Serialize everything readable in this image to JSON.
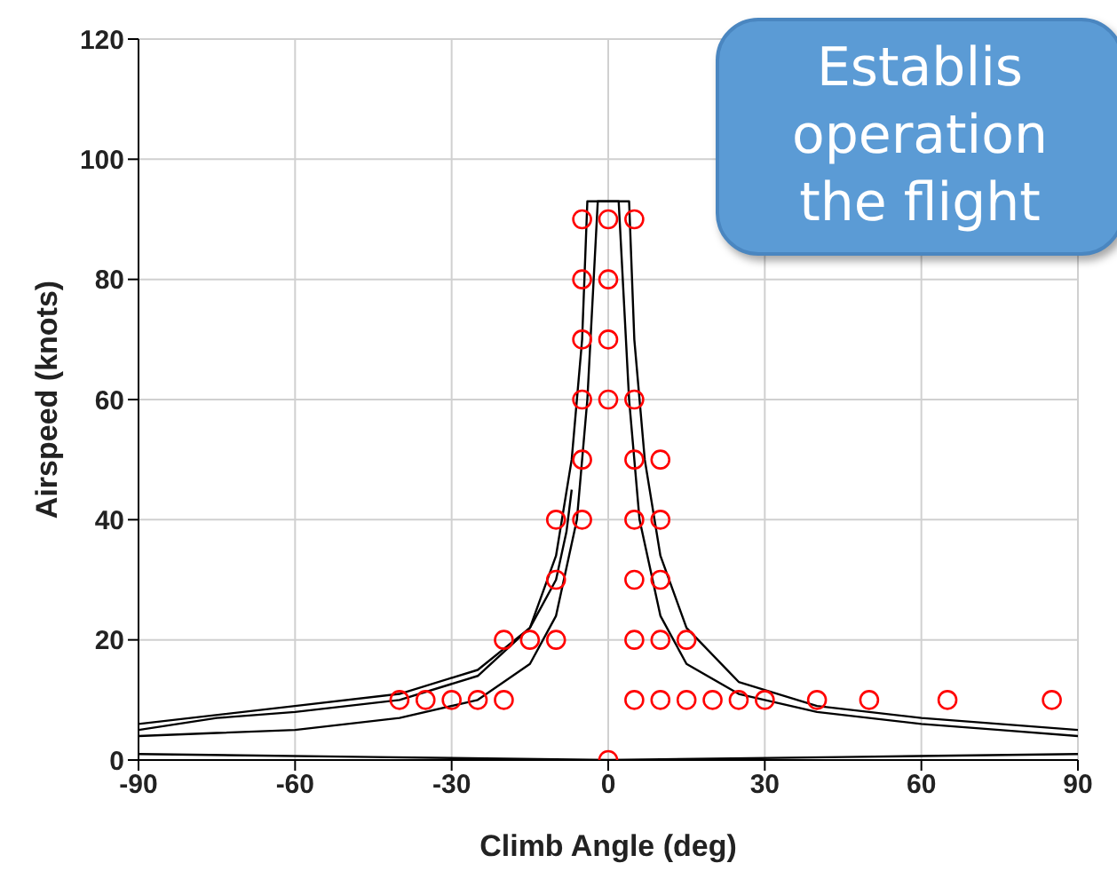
{
  "chart_data": {
    "type": "line",
    "xlabel": "Climb Angle (deg)",
    "ylabel": "Airspeed (knots)",
    "xlim": [
      -90,
      90
    ],
    "xticks": [
      -90,
      -60,
      -30,
      0,
      30,
      60,
      90
    ],
    "ylim": [
      0,
      120
    ],
    "yticks": [
      0,
      20,
      40,
      60,
      80,
      100,
      120
    ],
    "grid": true,
    "line_style": "solid",
    "series": [
      {
        "marker": "none",
        "color": "#000000",
        "x": [
          -90,
          -75,
          -60,
          -40,
          -25,
          -15,
          -10,
          -7,
          -5,
          -4,
          4,
          5,
          7,
          10,
          15,
          25,
          40,
          60,
          75,
          90
        ],
        "values": [
          5,
          7,
          8,
          10,
          14,
          22,
          34,
          50,
          70,
          93,
          93,
          70,
          50,
          34,
          22,
          13,
          9,
          7,
          6,
          5
        ]
      },
      {
        "marker": "none",
        "color": "#000000",
        "x": [
          -90,
          -75,
          -60,
          -40,
          -25,
          -15,
          -10,
          -6,
          -4,
          -2,
          2,
          4,
          6,
          10,
          15,
          25,
          40,
          60,
          75,
          90
        ],
        "values": [
          4,
          4.5,
          5,
          7,
          10,
          16,
          24,
          40,
          60,
          93,
          93,
          60,
          40,
          24,
          16,
          11,
          8,
          6,
          5,
          4
        ]
      },
      {
        "marker": "none",
        "color": "#000000",
        "x": [
          -90,
          -60,
          -40,
          -25,
          -15,
          -10,
          -8,
          -7
        ],
        "values": [
          6,
          9,
          11,
          15,
          22,
          30,
          38,
          45
        ]
      },
      {
        "marker": "none",
        "color": "#000000",
        "x": [
          -90,
          -45,
          0,
          45,
          90
        ],
        "values": [
          1,
          0.5,
          0,
          0.5,
          1
        ]
      },
      {
        "type": "scatter",
        "marker": "circle",
        "color": "#ff0000",
        "x": [
          -5,
          0,
          5,
          -5,
          0,
          -5,
          0,
          -5,
          0,
          5,
          -5,
          5,
          10,
          -10,
          -5,
          5,
          10,
          -10,
          5,
          10,
          -20,
          -15,
          -10,
          5,
          10,
          15,
          -40,
          -35,
          -30,
          -25,
          -20,
          5,
          10,
          15,
          20,
          25,
          30,
          40,
          50,
          65,
          85,
          0
        ],
        "values": [
          90,
          90,
          90,
          80,
          80,
          70,
          70,
          60,
          60,
          60,
          50,
          50,
          50,
          40,
          40,
          40,
          40,
          30,
          30,
          30,
          20,
          20,
          20,
          20,
          20,
          20,
          10,
          10,
          10,
          10,
          10,
          10,
          10,
          10,
          10,
          10,
          10,
          10,
          10,
          10,
          10,
          0
        ]
      }
    ],
    "annotations": [
      "Establis",
      "operation",
      "the flight"
    ]
  }
}
